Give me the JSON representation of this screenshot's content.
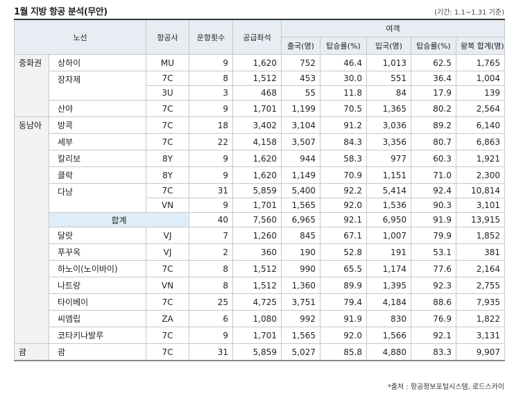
{
  "header": {
    "title": "1월 지방 항공 분석(무안)",
    "note": "(기간: 1.1~1.31 기준)"
  },
  "table": {
    "head": {
      "route": "노선",
      "airline": "항공사",
      "flights": "운항횟수",
      "seats": "공급좌석",
      "passengers": "여객",
      "sub": [
        "출국(명)",
        "탑승률(%)",
        "입국(명)",
        "탑승률(%)",
        "왕복 합계(명)"
      ]
    },
    "rows": [
      {
        "region": "중화권",
        "route": "상하이",
        "cells": [
          "MU",
          "9",
          "1,620",
          "752",
          "46.4",
          "1,013",
          "62.5",
          "1,765"
        ]
      },
      {
        "route": "장자제",
        "cells": [
          "7C",
          "8",
          "1,512",
          "453",
          "30.0",
          "551",
          "36.4",
          "1,004"
        ]
      },
      {
        "cells": [
          "3U",
          "3",
          "468",
          "55",
          "11.8",
          "84",
          "17.9",
          "139"
        ]
      },
      {
        "route": "산야",
        "cells": [
          "7C",
          "9",
          "1,701",
          "1,199",
          "70.5",
          "1,365",
          "80.2",
          "2,564"
        ]
      },
      {
        "region": "동남아",
        "route": "방콕",
        "cells": [
          "7C",
          "18",
          "3,402",
          "3,104",
          "91.2",
          "3,036",
          "89.2",
          "6,140"
        ]
      },
      {
        "route": "세부",
        "cells": [
          "7C",
          "22",
          "4,158",
          "3,507",
          "84.3",
          "3,356",
          "80.7",
          "6,863"
        ]
      },
      {
        "route": "칼리보",
        "cells": [
          "8Y",
          "9",
          "1,620",
          "944",
          "58.3",
          "977",
          "60.3",
          "1,921"
        ]
      },
      {
        "route": "클락",
        "cells": [
          "8Y",
          "9",
          "1,620",
          "1,149",
          "70.9",
          "1,151",
          "71.0",
          "2,300"
        ]
      },
      {
        "route": "다낭",
        "cells": [
          "7C",
          "31",
          "5,859",
          "5,400",
          "92.2",
          "5,414",
          "92.4",
          "10,814"
        ]
      },
      {
        "cells": [
          "VN",
          "9",
          "1,701",
          "1,565",
          "92.0",
          "1,536",
          "90.3",
          "3,101"
        ]
      },
      {
        "total": "합계",
        "cells": [
          "40",
          "7,560",
          "6,965",
          "92.1",
          "6,950",
          "91.9",
          "13,915"
        ]
      },
      {
        "route": "달랏",
        "cells": [
          "VJ",
          "7",
          "1,260",
          "845",
          "67.1",
          "1,007",
          "79.9",
          "1,852"
        ]
      },
      {
        "route": "푸꾸옥",
        "cells": [
          "VJ",
          "2",
          "360",
          "190",
          "52.8",
          "191",
          "53.1",
          "381"
        ]
      },
      {
        "route": "하노이(노이바이)",
        "cells": [
          "7C",
          "8",
          "1,512",
          "990",
          "65.5",
          "1,174",
          "77.6",
          "2,164"
        ]
      },
      {
        "route": "나트랑",
        "cells": [
          "VN",
          "8",
          "1,512",
          "1,360",
          "89.9",
          "1,395",
          "92.3",
          "2,755"
        ]
      },
      {
        "route": "타이베이",
        "cells": [
          "7C",
          "25",
          "4,725",
          "3,751",
          "79.4",
          "4,184",
          "88.6",
          "7,935"
        ]
      },
      {
        "route": "씨엠립",
        "cells": [
          "ZA",
          "6",
          "1,080",
          "992",
          "91.9",
          "830",
          "76.9",
          "1,822"
        ]
      },
      {
        "route": "코타키나발루",
        "cells": [
          "7C",
          "9",
          "1,701",
          "1,565",
          "92.0",
          "1,566",
          "92.1",
          "3,131"
        ]
      },
      {
        "region": "괌",
        "route": "괌",
        "cells": [
          "7C",
          "31",
          "5,859",
          "5,027",
          "85.8",
          "4,880",
          "83.3",
          "9,907"
        ]
      }
    ]
  },
  "footer": {
    "source": "*출처 : 항공정보포털시스템, 로드스카이"
  }
}
